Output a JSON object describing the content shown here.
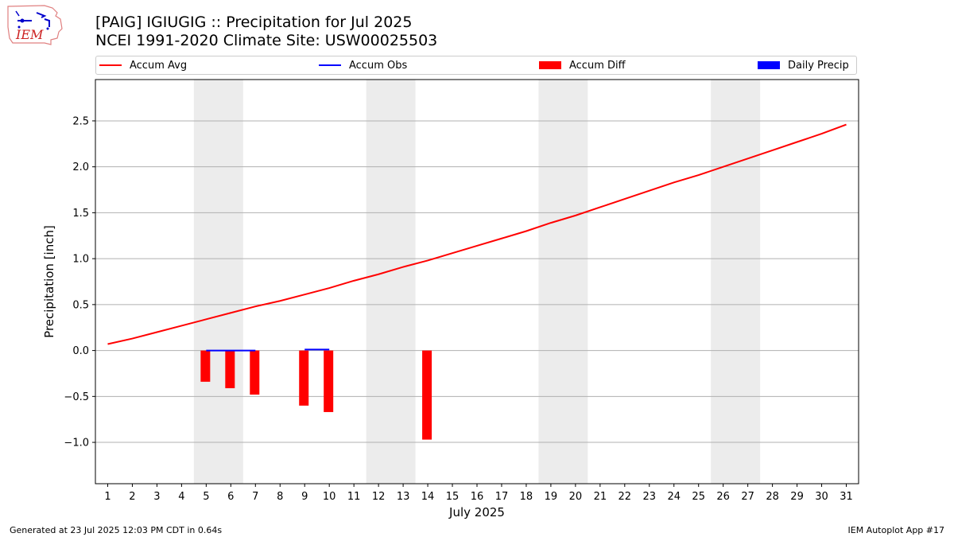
{
  "header": {
    "title_line1": "[PAIG] IGIUGIG :: Precipitation for Jul 2025",
    "title_line2": "NCEI 1991-2020 Climate Site: USW00025503",
    "logo_text": "IEM"
  },
  "legend": {
    "items": [
      {
        "label": "Accum Avg",
        "kind": "line",
        "color": "#ff0000"
      },
      {
        "label": "Accum Obs",
        "kind": "line",
        "color": "#0000ff"
      },
      {
        "label": "Accum Diff",
        "kind": "box",
        "color": "#ff0000"
      },
      {
        "label": "Daily Precip",
        "kind": "box",
        "color": "#0000ff"
      }
    ]
  },
  "footer": {
    "left": "Generated at 23 Jul 2025 12:03 PM CDT in 0.64s",
    "right": "IEM Autoplot App #17"
  },
  "chart_data": {
    "type": "bar",
    "xlabel": "July 2025",
    "ylabel": "Precipitation [inch]",
    "xlim": [
      0.5,
      31.5
    ],
    "ylim": [
      -1.45,
      2.95
    ],
    "x_ticks": [
      1,
      2,
      3,
      4,
      5,
      6,
      7,
      8,
      9,
      10,
      11,
      12,
      13,
      14,
      15,
      16,
      17,
      18,
      19,
      20,
      21,
      22,
      23,
      24,
      25,
      26,
      27,
      28,
      29,
      30,
      31
    ],
    "y_ticks": [
      -1.0,
      -0.5,
      0.0,
      0.5,
      1.0,
      1.5,
      2.0,
      2.5
    ],
    "y_tick_labels": [
      "−1.0",
      "−0.5",
      "0.0",
      "0.5",
      "1.0",
      "1.5",
      "2.0",
      "2.5"
    ],
    "grid": "horizontal",
    "legend_placement": "top",
    "weekend_shading": [
      [
        4.5,
        6.5
      ],
      [
        11.5,
        13.5
      ],
      [
        18.5,
        20.5
      ],
      [
        25.5,
        27.5
      ]
    ],
    "accum_avg": {
      "name": "Accum Avg",
      "color": "#ff0000",
      "x": [
        1,
        2,
        3,
        4,
        5,
        6,
        7,
        8,
        9,
        10,
        11,
        12,
        13,
        14,
        15,
        16,
        17,
        18,
        19,
        20,
        21,
        22,
        23,
        24,
        25,
        26,
        27,
        28,
        29,
        30,
        31
      ],
      "values": [
        0.07,
        0.13,
        0.2,
        0.27,
        0.34,
        0.41,
        0.48,
        0.54,
        0.61,
        0.68,
        0.76,
        0.83,
        0.91,
        0.98,
        1.06,
        1.14,
        1.22,
        1.3,
        1.39,
        1.47,
        1.56,
        1.65,
        1.74,
        1.83,
        1.91,
        2.0,
        2.09,
        2.18,
        2.27,
        2.36,
        2.46
      ]
    },
    "accum_obs": {
      "name": "Accum Obs",
      "color": "#0000ff",
      "segments": [
        {
          "x": [
            5,
            7
          ],
          "value": 0.0
        },
        {
          "x": [
            9,
            10
          ],
          "value": 0.01
        }
      ]
    },
    "accum_diff": {
      "name": "Accum Diff",
      "color": "#ff0000",
      "x": [
        5,
        6,
        7,
        9,
        10,
        14
      ],
      "values": [
        -0.34,
        -0.41,
        -0.48,
        -0.6,
        -0.67,
        -0.97
      ]
    },
    "daily_precip": {
      "name": "Daily Precip",
      "color": "#0000ff",
      "x": [],
      "values": []
    }
  }
}
